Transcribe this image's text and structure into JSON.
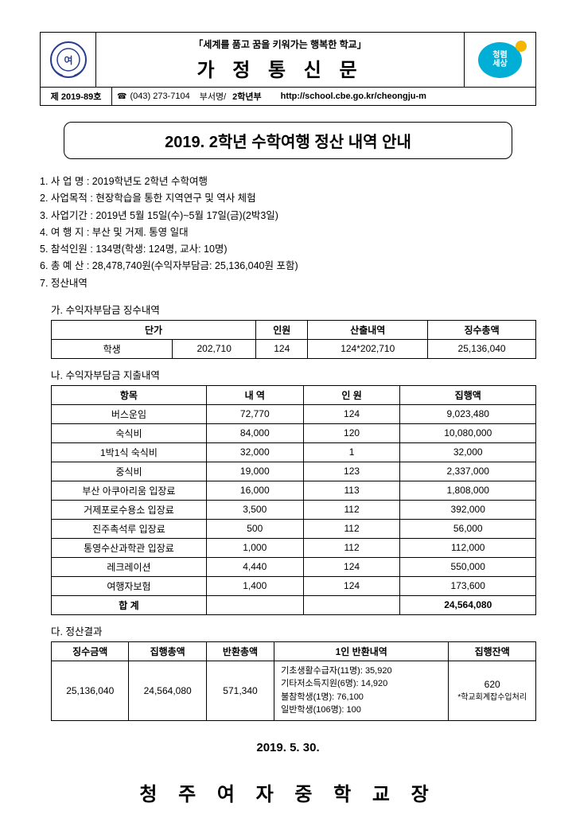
{
  "header": {
    "slogan": "「세계를 품고 꿈을 키워가는 행복한 학교」",
    "doc_title": "가 정 통 신 문",
    "doc_number": "제 2019-89호",
    "phone": "(043) 273-7104",
    "dept_label": "부서명/",
    "dept_value": "2학년부",
    "url": "http://school.cbe.go.kr/cheongju-m",
    "right_logo_text": "청렴\n세상"
  },
  "main_title": "2019. 2학년 수학여행 정산 내역 안내",
  "info": {
    "item1": "1. 사 업 명 : 2019학년도 2학년 수학여행",
    "item2": "2. 사업목적 : 현장학습을 통한 지역연구 및 역사 체험",
    "item3": "3. 사업기간 : 2019년 5월 15일(수)~5월 17일(금)(2박3일)",
    "item4": "4. 여 행 지 : 부산 및 거제. 통영 일대",
    "item5": "5. 참석인원 : 134명(학생: 124명, 교사: 10명)",
    "item6": "6. 총 예 산 : 28,478,740원(수익자부담금: 25,136,040원 포함)",
    "item7": "7. 정산내역"
  },
  "section_ga": {
    "title": "가. 수익자부담금 징수내역",
    "headers": [
      "",
      "단가",
      "인원",
      "산출내역",
      "징수총액"
    ],
    "row": [
      "학생",
      "202,710",
      "124",
      "124*202,710",
      "25,136,040"
    ]
  },
  "section_na": {
    "title": "나. 수익자부담금 지출내역",
    "headers": [
      "항목",
      "내 역",
      "인 원",
      "집행액"
    ],
    "rows": [
      [
        "버스운임",
        "72,770",
        "124",
        "9,023,480"
      ],
      [
        "숙식비",
        "84,000",
        "120",
        "10,080,000"
      ],
      [
        "1박1식 숙식비",
        "32,000",
        "1",
        "32,000"
      ],
      [
        "중식비",
        "19,000",
        "123",
        "2,337,000"
      ],
      [
        "부산 아쿠아리움 입장료",
        "16,000",
        "113",
        "1,808,000"
      ],
      [
        "거제포로수용소 입장료",
        "3,500",
        "112",
        "392,000"
      ],
      [
        "진주촉석루 입장료",
        "500",
        "112",
        "56,000"
      ],
      [
        "통영수산과학관 입장료",
        "1,000",
        "112",
        "112,000"
      ],
      [
        "레크레이션",
        "4,440",
        "124",
        "550,000"
      ],
      [
        "여행자보험",
        "1,400",
        "124",
        "173,600"
      ]
    ],
    "total_row": [
      "합  계",
      "",
      "",
      "24,564,080"
    ]
  },
  "section_da": {
    "title": "다. 정산결과",
    "headers": [
      "징수금액",
      "집행총액",
      "반환총액",
      "1인 반환내역",
      "집행잔액"
    ],
    "collected": "25,136,040",
    "executed": "24,564,080",
    "refund_total": "571,340",
    "refund_lines": {
      "l1": "기초생활수급자(11명): 35,920",
      "l2": "기타저소득지원(6명): 14,920",
      "l3": "불참학생(1명): 76,100",
      "l4": "일반학생(106명): 100"
    },
    "balance": "620",
    "balance_note": "*학교회계잡수입처리"
  },
  "date": "2019. 5. 30.",
  "signature": "청 주 여 자 중 학 교 장"
}
